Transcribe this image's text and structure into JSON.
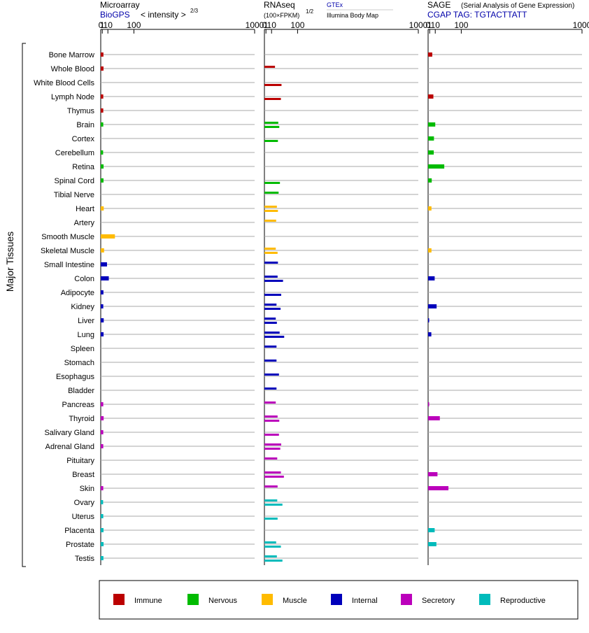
{
  "headers": {
    "microarray": {
      "title": "Microarray",
      "source": "BioGPS",
      "scale": "< intensity >",
      "scale_exp": "2/3"
    },
    "rnaseq": {
      "title": "RNAseq",
      "unit": "(100×FPKM)",
      "unit_exp": "1/2",
      "source1": "GTEx",
      "source2": "Illumina Body Map"
    },
    "sage": {
      "title": "SAGE",
      "note": "(Serial Analysis of Gene Expression)",
      "tag": "CGAP TAG: TGTACTTATT"
    }
  },
  "axis_label": "Major Tissues",
  "tick_labels": [
    "0",
    "1",
    "10",
    "100",
    "1000"
  ],
  "legend": [
    {
      "key": "immune",
      "label": "Immune",
      "color": "#bb0000"
    },
    {
      "key": "nervous",
      "label": "Nervous",
      "color": "#00bb00"
    },
    {
      "key": "muscle",
      "label": "Muscle",
      "color": "#ffbb00"
    },
    {
      "key": "internal",
      "label": "Internal",
      "color": "#0000bb"
    },
    {
      "key": "secretory",
      "label": "Secretory",
      "color": "#bb00bb"
    },
    {
      "key": "reproductive",
      "label": "Reproductive",
      "color": "#00bbbb"
    }
  ],
  "chart_data": {
    "type": "bar",
    "orientation": "horizontal",
    "x_scale": "power-2/3",
    "xlim": [
      0,
      1000
    ],
    "panels": [
      "Microarray",
      "RNAseq (GTEx)",
      "RNAseq (Illumina Body Map)",
      "SAGE"
    ],
    "categories": [
      "Bone Marrow",
      "Whole Blood",
      "White Blood Cells",
      "Lymph Node",
      "Thymus",
      "Brain",
      "Cortex",
      "Cerebellum",
      "Retina",
      "Spinal Cord",
      "Tibial Nerve",
      "Heart",
      "Artery",
      "Smooth Muscle",
      "Skeletal Muscle",
      "Small Intestine",
      "Colon",
      "Adipocyte",
      "Kidney",
      "Liver",
      "Lung",
      "Spleen",
      "Stomach",
      "Esophagus",
      "Bladder",
      "Pancreas",
      "Thyroid",
      "Salivary Gland",
      "Adrenal Gland",
      "Pituitary",
      "Breast",
      "Skin",
      "Ovary",
      "Uterus",
      "Placenta",
      "Prostate",
      "Testis"
    ],
    "groups": [
      "immune",
      "immune",
      "immune",
      "immune",
      "immune",
      "nervous",
      "nervous",
      "nervous",
      "nervous",
      "nervous",
      "nervous",
      "muscle",
      "muscle",
      "muscle",
      "muscle",
      "internal",
      "internal",
      "internal",
      "internal",
      "internal",
      "internal",
      "internal",
      "internal",
      "internal",
      "internal",
      "secretory",
      "secretory",
      "secretory",
      "secretory",
      "secretory",
      "secretory",
      "secretory",
      "reproductive",
      "reproductive",
      "reproductive",
      "reproductive",
      "reproductive"
    ],
    "microarray": [
      2.3,
      2.4,
      null,
      2.1,
      2.1,
      2.1,
      null,
      1.9,
      2.5,
      2.4,
      null,
      2.7,
      null,
      28,
      3.2,
      8.2,
      12,
      2.3,
      2.1,
      2.7,
      2.5,
      null,
      null,
      null,
      null,
      2.1,
      2.6,
      2.1,
      2.1,
      null,
      null,
      2.1,
      1.9,
      2.1,
      2.4,
      2.5,
      2.3
    ],
    "rnaseq_gtex": [
      null,
      18,
      null,
      null,
      null,
      27,
      null,
      null,
      null,
      null,
      28,
      23,
      21,
      null,
      20,
      26,
      25,
      null,
      22,
      20,
      31,
      22,
      22,
      29,
      22,
      20,
      25,
      null,
      36,
      24,
      35,
      25,
      24,
      null,
      null,
      21,
      23
    ],
    "rnaseq_ibm": [
      null,
      null,
      37,
      35,
      null,
      30,
      26,
      null,
      null,
      32,
      null,
      26,
      null,
      null,
      25,
      null,
      42,
      36,
      34,
      23,
      46,
      null,
      null,
      null,
      null,
      null,
      30,
      29,
      33,
      null,
      45,
      null,
      40,
      25,
      null,
      35,
      40
    ],
    "sage": [
      4.4,
      null,
      null,
      6.3,
      null,
      10,
      7.4,
      7,
      34,
      3.6,
      null,
      3.2,
      null,
      null,
      3.2,
      null,
      8.8,
      null,
      13,
      0.3,
      3,
      null,
      null,
      null,
      null,
      0.2,
      21,
      null,
      null,
      null,
      15,
      48,
      null,
      null,
      8.8,
      12.5,
      null
    ]
  }
}
